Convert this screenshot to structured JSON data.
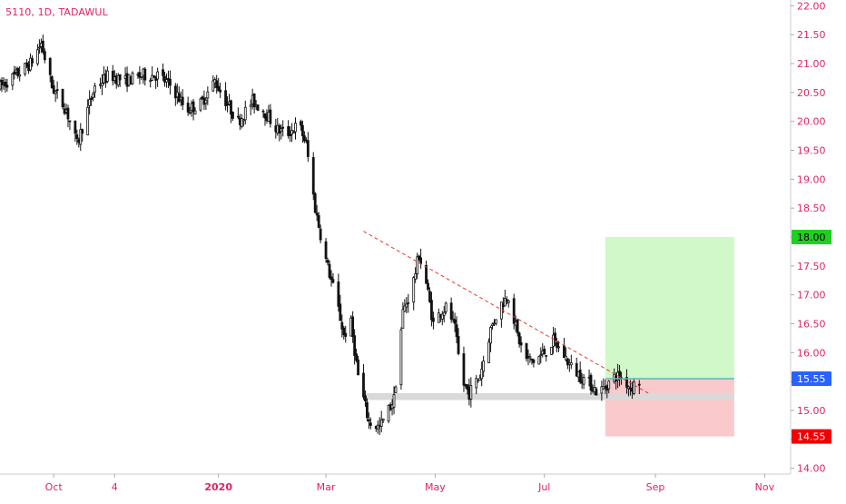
{
  "header": {
    "symbol_line": "5110, 1D, TADAWUL"
  },
  "colors": {
    "text_accent": "#e0245e",
    "candle": "#111111",
    "target_zone": "#c8f7c0",
    "stop_zone": "#f9c3c6",
    "support_band": "#d9d9d9",
    "trendline": "#e53935",
    "target_badge": "#1fd11f",
    "entry_badge": "#2962ff",
    "stop_badge": "#f00000",
    "entry_line": "#5cb8b2"
  },
  "chart_data": {
    "type": "candlestick",
    "y_axis": {
      "ticks": [
        "14.00",
        "14.50",
        "15.00",
        "15.50",
        "16.00",
        "16.50",
        "17.00",
        "17.50",
        "18.00",
        "18.50",
        "19.00",
        "19.50",
        "20.00",
        "20.50",
        "21.00",
        "21.50",
        "22.00"
      ],
      "range": [
        13.9,
        22.1
      ]
    },
    "x_axis": {
      "ticks": [
        "Oct",
        "4",
        "2020",
        "Mar",
        "May",
        "Jul",
        "Sep",
        "Nov"
      ],
      "range": [
        "2019-09-01",
        "2020-11-15"
      ]
    },
    "price_badges": {
      "target": "18.00",
      "entry": "15.55",
      "stop": "14.55"
    },
    "position": {
      "start_date": "2020-08-04",
      "end_date": "2020-10-15",
      "entry": 15.55,
      "target": 18.0,
      "stop": 14.55
    },
    "support_band": {
      "start_date": "2020-03-22",
      "end_date": "2020-10-15",
      "low": 15.18,
      "high": 15.3
    },
    "trendline": {
      "start": [
        "2020-03-22",
        18.1
      ],
      "end": [
        "2020-08-28",
        15.3
      ]
    },
    "ohlc_waypoints": [
      [
        "2019-09-01",
        20.6
      ],
      [
        "2019-09-10",
        20.8
      ],
      [
        "2019-09-18",
        21.0
      ],
      [
        "2019-09-24",
        21.35
      ],
      [
        "2019-09-30",
        20.6
      ],
      [
        "2019-10-08",
        20.2
      ],
      [
        "2019-10-14",
        19.6
      ],
      [
        "2019-10-18",
        20.0
      ],
      [
        "2019-10-24",
        20.6
      ],
      [
        "2019-11-01",
        20.8
      ],
      [
        "2019-11-10",
        20.7
      ],
      [
        "2019-11-20",
        20.8
      ],
      [
        "2019-11-28",
        20.8
      ],
      [
        "2019-12-06",
        20.6
      ],
      [
        "2019-12-14",
        20.2
      ],
      [
        "2019-12-22",
        20.3
      ],
      [
        "2019-12-30",
        20.7
      ],
      [
        "2020-01-06",
        20.3
      ],
      [
        "2020-01-12",
        20.0
      ],
      [
        "2020-01-20",
        20.35
      ],
      [
        "2020-01-26",
        20.2
      ],
      [
        "2020-02-03",
        19.85
      ],
      [
        "2020-02-09",
        19.8
      ],
      [
        "2020-02-15",
        19.95
      ],
      [
        "2020-02-19",
        19.6
      ],
      [
        "2020-02-24",
        18.5
      ],
      [
        "2020-03-01",
        17.6
      ],
      [
        "2020-03-07",
        16.9
      ],
      [
        "2020-03-11",
        16.3
      ],
      [
        "2020-03-15",
        16.5
      ],
      [
        "2020-03-19",
        15.6
      ],
      [
        "2020-03-25",
        14.8
      ],
      [
        "2020-03-31",
        14.7
      ],
      [
        "2020-04-08",
        15.2
      ],
      [
        "2020-04-13",
        16.7
      ],
      [
        "2020-04-18",
        17.1
      ],
      [
        "2020-04-22",
        17.7
      ],
      [
        "2020-04-26",
        17.2
      ],
      [
        "2020-04-30",
        16.5
      ],
      [
        "2020-05-04",
        16.7
      ],
      [
        "2020-05-08",
        16.8
      ],
      [
        "2020-05-12",
        16.4
      ],
      [
        "2020-05-16",
        15.5
      ],
      [
        "2020-05-20",
        15.3
      ],
      [
        "2020-05-26",
        15.6
      ],
      [
        "2020-06-01",
        16.4
      ],
      [
        "2020-06-06",
        16.8
      ],
      [
        "2020-06-11",
        17.0
      ],
      [
        "2020-06-16",
        16.3
      ],
      [
        "2020-06-20",
        15.9
      ],
      [
        "2020-06-25",
        15.85
      ],
      [
        "2020-07-01",
        16.0
      ],
      [
        "2020-07-06",
        16.2
      ],
      [
        "2020-07-11",
        16.0
      ],
      [
        "2020-07-16",
        15.75
      ],
      [
        "2020-07-21",
        15.6
      ],
      [
        "2020-07-27",
        15.45
      ],
      [
        "2020-07-31",
        15.3
      ],
      [
        "2020-08-05",
        15.45
      ],
      [
        "2020-08-10",
        15.6
      ],
      [
        "2020-08-14",
        15.55
      ],
      [
        "2020-08-18",
        15.4
      ],
      [
        "2020-08-23",
        15.5
      ]
    ]
  }
}
